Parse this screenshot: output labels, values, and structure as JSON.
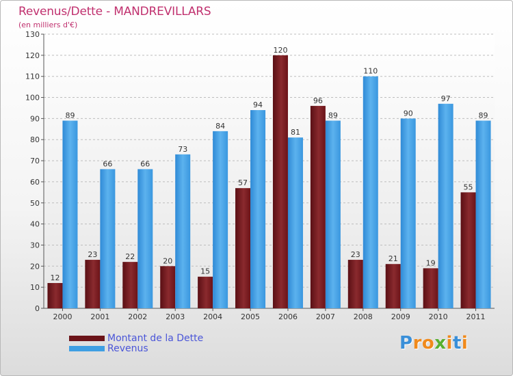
{
  "header": {
    "title": "Revenus/Dette - MANDREVILLARS",
    "subtitle": "(en milliers d'€)"
  },
  "chart_data": {
    "type": "bar",
    "title": "Revenus/Dette - MANDREVILLARS",
    "subtitle": "(en milliers d'€)",
    "categories": [
      "2000",
      "2001",
      "2002",
      "2003",
      "2004",
      "2005",
      "2006",
      "2007",
      "2008",
      "2009",
      "2010",
      "2011"
    ],
    "series": [
      {
        "name": "Montant de la Dette",
        "color": "#6b1318",
        "values": [
          12,
          23,
          22,
          20,
          15,
          57,
          120,
          96,
          23,
          21,
          19,
          55
        ]
      },
      {
        "name": "Revenus",
        "color": "#3f9fe3",
        "values": [
          89,
          66,
          66,
          73,
          84,
          94,
          81,
          89,
          110,
          90,
          97,
          89
        ]
      }
    ],
    "ylim": [
      0,
      130
    ],
    "yticks": [
      0,
      10,
      20,
      30,
      40,
      50,
      60,
      70,
      80,
      90,
      100,
      110,
      120,
      130
    ],
    "grid": true,
    "legend_position": "bottom-left"
  },
  "legend": {
    "items": [
      {
        "label": "Montant de la Dette",
        "color": "#6b1318"
      },
      {
        "label": "Revenus",
        "color": "#3f9fe3"
      }
    ]
  },
  "logo": {
    "letters": [
      "P",
      "r",
      "o",
      "x",
      "i",
      "t",
      "i"
    ],
    "colors": [
      "#3a8fd8",
      "#f08a1c",
      "#f08a1c",
      "#58b030",
      "#f08a1c",
      "#3a8fd8",
      "#f08a1c"
    ]
  }
}
